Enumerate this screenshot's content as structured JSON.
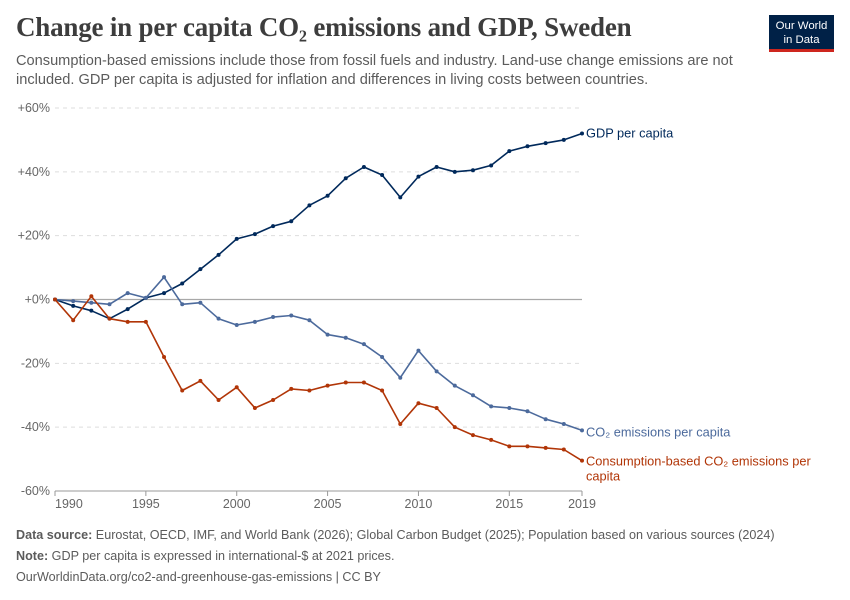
{
  "title": "Change in per capita CO₂ emissions and GDP, Sweden",
  "subtitle": "Consumption-based emissions include those from fossil fuels and industry. Land-use change emissions are not included. GDP per capita is adjusted for inflation and differences in living costs between countries.",
  "logo": {
    "line1": "Our World",
    "line2": "in Data",
    "bg": "#002147",
    "accent": "#ce261e"
  },
  "footer": {
    "source_label": "Data source:",
    "source_text": " Eurostat, OECD, IMF, and World Bank (2026); Global Carbon Budget (2025); Population based on various sources (2024)",
    "note_label": "Note:",
    "note_text": " GDP per capita is expressed in international-$ at 2021 prices.",
    "url": "OurWorldinData.org/co2-and-greenhouse-gas-emissions | CC BY"
  },
  "chart_data": {
    "type": "line",
    "xlim": [
      1990,
      2019
    ],
    "ylim": [
      -60,
      60
    ],
    "x_ticks": [
      1990,
      1995,
      2000,
      2005,
      2010,
      2015,
      2019
    ],
    "y_ticks": [
      -60,
      -40,
      -20,
      0,
      20,
      40,
      60
    ],
    "y_tick_labels": [
      "-60%",
      "-40%",
      "-20%",
      "+0%",
      "+20%",
      "+40%",
      "+60%"
    ],
    "grid": "horizontal dashed",
    "x": [
      1990,
      1991,
      1992,
      1993,
      1994,
      1995,
      1996,
      1997,
      1998,
      1999,
      2000,
      2001,
      2002,
      2003,
      2004,
      2005,
      2006,
      2007,
      2008,
      2009,
      2010,
      2011,
      2012,
      2013,
      2014,
      2015,
      2016,
      2017,
      2018,
      2019
    ],
    "series": [
      {
        "name": "GDP per capita",
        "color": "#00295b",
        "values": [
          0,
          -2,
          -3.5,
          -6,
          -3,
          0.5,
          2,
          5,
          9.5,
          14,
          19,
          20.5,
          23,
          24.5,
          29.5,
          32.5,
          38,
          41.5,
          39,
          32,
          38.5,
          41.5,
          40,
          40.5,
          42,
          46.5,
          48,
          49,
          50,
          52
        ]
      },
      {
        "name": "CO₂ emissions per capita",
        "color": "#4c6a9c",
        "values": [
          0,
          -0.5,
          -1,
          -1.5,
          2,
          0.5,
          7,
          -1.5,
          -1,
          -6,
          -8,
          -7,
          -5.5,
          -5,
          -6.5,
          -11,
          -12,
          -14,
          -18,
          -24.5,
          -16,
          -22.5,
          -27,
          -30,
          -33.5,
          -34,
          -35,
          -37.5,
          -39,
          -41
        ]
      },
      {
        "name": "Consumption-based CO₂ emissions per capita",
        "color": "#b13507",
        "values": [
          0,
          -6.5,
          1,
          -6,
          -7,
          -7,
          -18,
          -28.5,
          -25.5,
          -31.5,
          -27.5,
          -34,
          -31.5,
          -28,
          -28.5,
          -27,
          -26,
          -26,
          -28.5,
          -39,
          -32.5,
          -34,
          -40,
          -42.5,
          -44,
          -46,
          -46,
          -46.5,
          -47,
          -50.5
        ]
      }
    ]
  }
}
